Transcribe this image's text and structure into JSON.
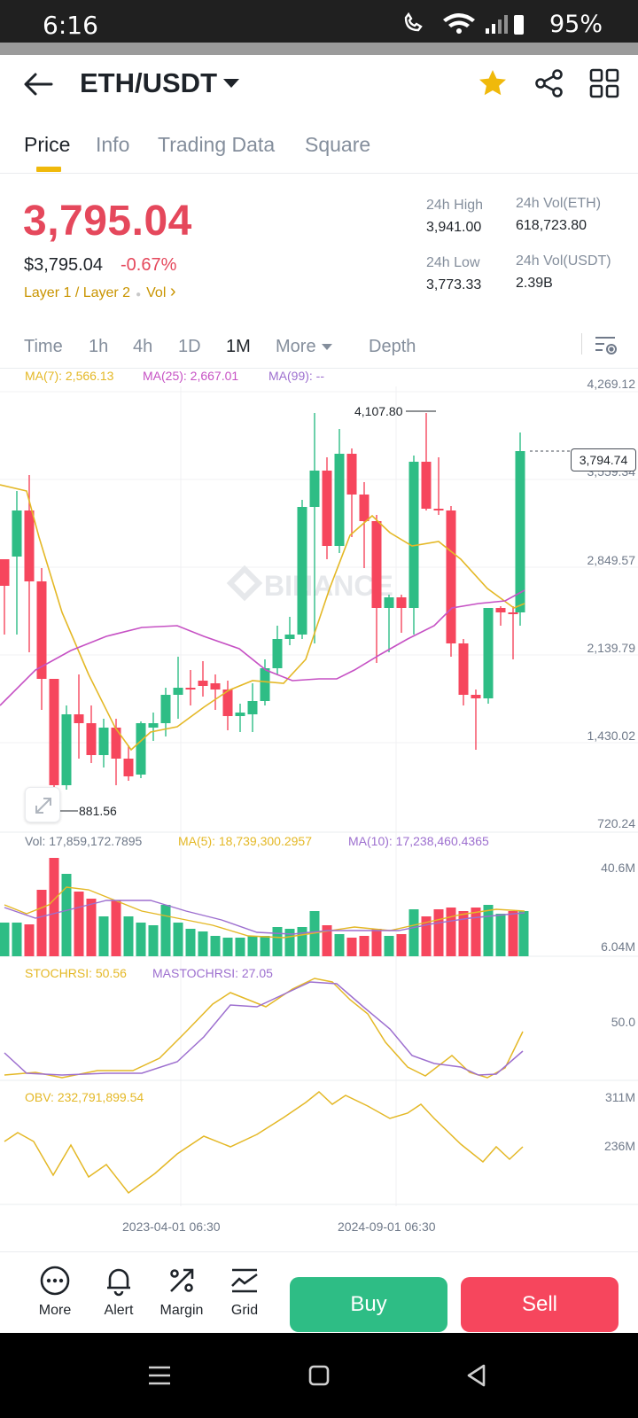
{
  "status_bar": {
    "time": "6:16",
    "battery": "95%"
  },
  "header": {
    "pair": "ETH/USDT"
  },
  "tabs": [
    {
      "label": "Price",
      "active": true
    },
    {
      "label": "Info",
      "active": false
    },
    {
      "label": "Trading Data",
      "active": false
    },
    {
      "label": "Square",
      "active": false
    }
  ],
  "price": {
    "last": "3,795.04",
    "usd": "$3,795.04",
    "change": "-0.67%",
    "tag1": "Layer 1 / Layer 2",
    "tag2": "Vol",
    "tag2_arrow": "›",
    "colors": {
      "down": "#e5485c",
      "up": "#2ebd85",
      "accent": "#f0b90b"
    }
  },
  "stats": {
    "high_label": "24h High",
    "high_value": "3,941.00",
    "low_label": "24h Low",
    "low_value": "3,773.33",
    "vol_eth_label": "24h Vol(ETH)",
    "vol_eth_value": "618,723.80",
    "vol_usdt_label": "24h Vol(USDT)",
    "vol_usdt_value": "2.39B"
  },
  "intervals": [
    {
      "label": "Time",
      "active": false
    },
    {
      "label": "1h",
      "active": false
    },
    {
      "label": "4h",
      "active": false
    },
    {
      "label": "1D",
      "active": false
    },
    {
      "label": "1M",
      "active": true
    },
    {
      "label": "More",
      "active": false
    },
    {
      "label": "Depth",
      "active": false
    }
  ],
  "chart": {
    "ma7": "MA(7): 2,566.13",
    "ma25": "MA(25): 2,667.01",
    "ma99": "MA(99): --",
    "price_axis": [
      "4,269.12",
      "3,559.34",
      "2,849.57",
      "2,139.79",
      "1,430.02",
      "720.24"
    ],
    "current_price_tag": "3,794.74",
    "high_annotation": "4,107.80",
    "low_annotation": "881.56",
    "watermark": "BINANCE",
    "vol_label": "Vol: 17,859,172.7895",
    "vol_ma5": "MA(5): 18,739,300.2957",
    "vol_ma10": "MA(10): 17,238,460.4365",
    "vol_axis": [
      "40.6M",
      "6.04M"
    ],
    "stoch_label": "STOCHRSI: 50.56",
    "mastoch_label": "MASTOCHRSI: 27.05",
    "stoch_axis": [
      "50.0"
    ],
    "obv_label": "OBV: 232,791,899.54",
    "obv_axis": [
      "311M",
      "236M"
    ],
    "dates": [
      "2023-04-01 06:30",
      "2024-09-01 06:30"
    ]
  },
  "actions": [
    {
      "label": "More",
      "icon": "more-icon"
    },
    {
      "label": "Alert",
      "icon": "bell-icon"
    },
    {
      "label": "Margin",
      "icon": "margin-icon"
    },
    {
      "label": "Grid",
      "icon": "grid-trading-icon"
    }
  ],
  "buy_label": "Buy",
  "sell_label": "Sell"
}
